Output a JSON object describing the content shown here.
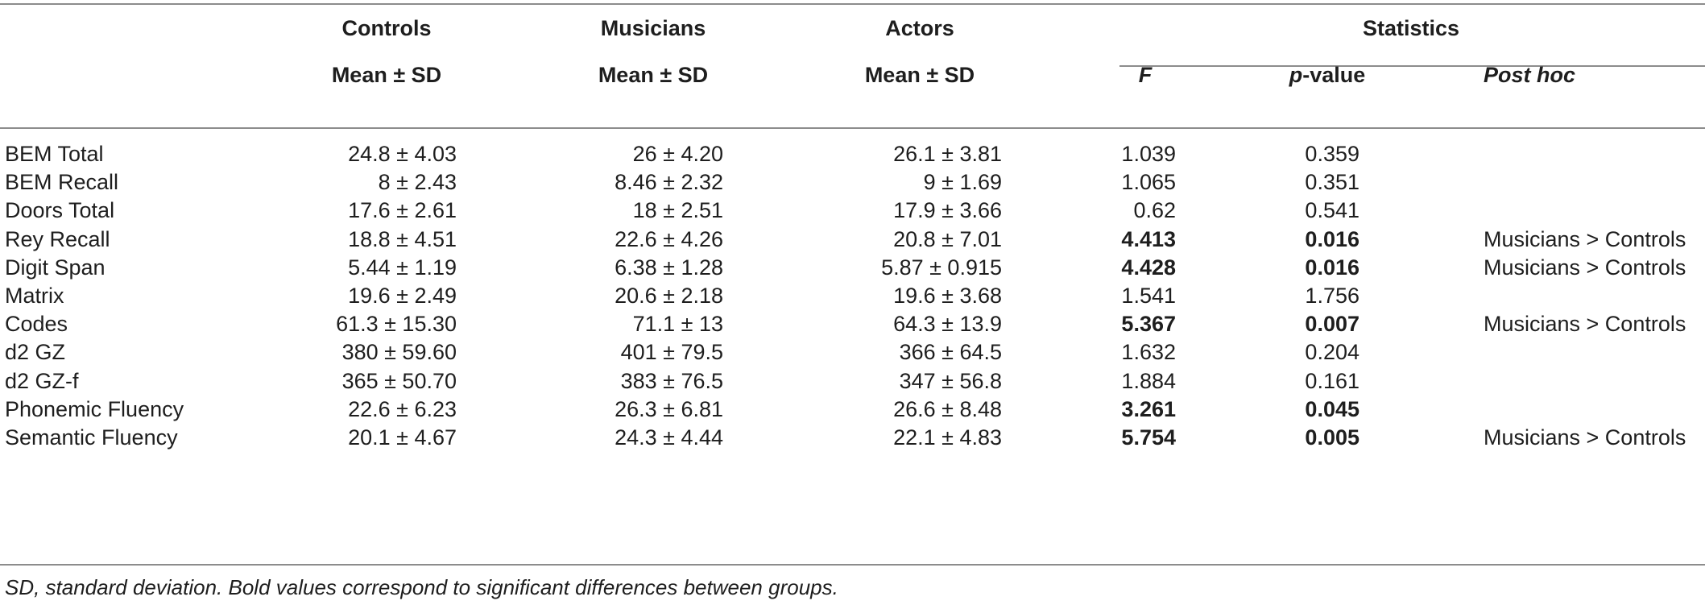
{
  "table": {
    "group_headers": {
      "controls": "Controls",
      "musicians": "Musicians",
      "actors": "Actors",
      "statistics": "Statistics"
    },
    "sub_headers": {
      "controls": "Mean ± SD",
      "musicians": "Mean ± SD",
      "actors": "Mean ± SD",
      "f": "F",
      "p_prefix": "p",
      "p_suffix": "-value",
      "post_hoc": "Post hoc"
    },
    "rows": [
      {
        "measure": "BEM Total",
        "controls": "24.8 ± 4.03",
        "musicians": "26 ± 4.20",
        "actors": "26.1 ± 3.81",
        "f": "1.039",
        "p": "0.359",
        "post_hoc": "",
        "significant": false
      },
      {
        "measure": "BEM Recall",
        "controls": "8 ± 2.43",
        "musicians": "8.46 ± 2.32",
        "actors": "9 ± 1.69",
        "f": "1.065",
        "p": "0.351",
        "post_hoc": "",
        "significant": false
      },
      {
        "measure": "Doors Total",
        "controls": "17.6 ± 2.61",
        "musicians": "18 ± 2.51",
        "actors": "17.9 ± 3.66",
        "f": "0.62",
        "p": "0.541",
        "post_hoc": "",
        "significant": false
      },
      {
        "measure": "Rey Recall",
        "controls": "18.8 ± 4.51",
        "musicians": "22.6 ± 4.26",
        "actors": "20.8 ± 7.01",
        "f": "4.413",
        "p": "0.016",
        "post_hoc": "Musicians > Controls",
        "significant": true
      },
      {
        "measure": "Digit Span",
        "controls": "5.44 ± 1.19",
        "musicians": "6.38 ± 1.28",
        "actors": "5.87 ± 0.915",
        "f": "4.428",
        "p": "0.016",
        "post_hoc": "Musicians > Controls",
        "significant": true
      },
      {
        "measure": "Matrix",
        "controls": "19.6 ± 2.49",
        "musicians": "20.6 ± 2.18",
        "actors": "19.6 ± 3.68",
        "f": "1.541",
        "p": "1.756",
        "post_hoc": "",
        "significant": false
      },
      {
        "measure": "Codes",
        "controls": "61.3 ± 15.30",
        "musicians": "71.1 ± 13",
        "actors": "64.3 ± 13.9",
        "f": "5.367",
        "p": "0.007",
        "post_hoc": "Musicians > Controls",
        "significant": true
      },
      {
        "measure": "d2 GZ",
        "controls": "380 ± 59.60",
        "musicians": "401 ± 79.5",
        "actors": "366 ± 64.5",
        "f": "1.632",
        "p": "0.204",
        "post_hoc": "",
        "significant": false
      },
      {
        "measure": "d2 GZ-f",
        "controls": "365 ± 50.70",
        "musicians": "383 ± 76.5",
        "actors": "347 ± 56.8",
        "f": "1.884",
        "p": "0.161",
        "post_hoc": "",
        "significant": false
      },
      {
        "measure": "Phonemic Fluency",
        "controls": "22.6 ± 6.23",
        "musicians": "26.3 ± 6.81",
        "actors": "26.6 ± 8.48",
        "f": "3.261",
        "p": "0.045",
        "post_hoc": "",
        "significant": true
      },
      {
        "measure": "Semantic Fluency",
        "controls": "20.1 ± 4.67",
        "musicians": "24.3 ± 4.44",
        "actors": "22.1 ± 4.83",
        "f": "5.754",
        "p": "0.005",
        "post_hoc": "Musicians > Controls",
        "significant": true
      }
    ],
    "footnote": "SD, standard deviation. Bold values correspond to significant differences between groups."
  }
}
